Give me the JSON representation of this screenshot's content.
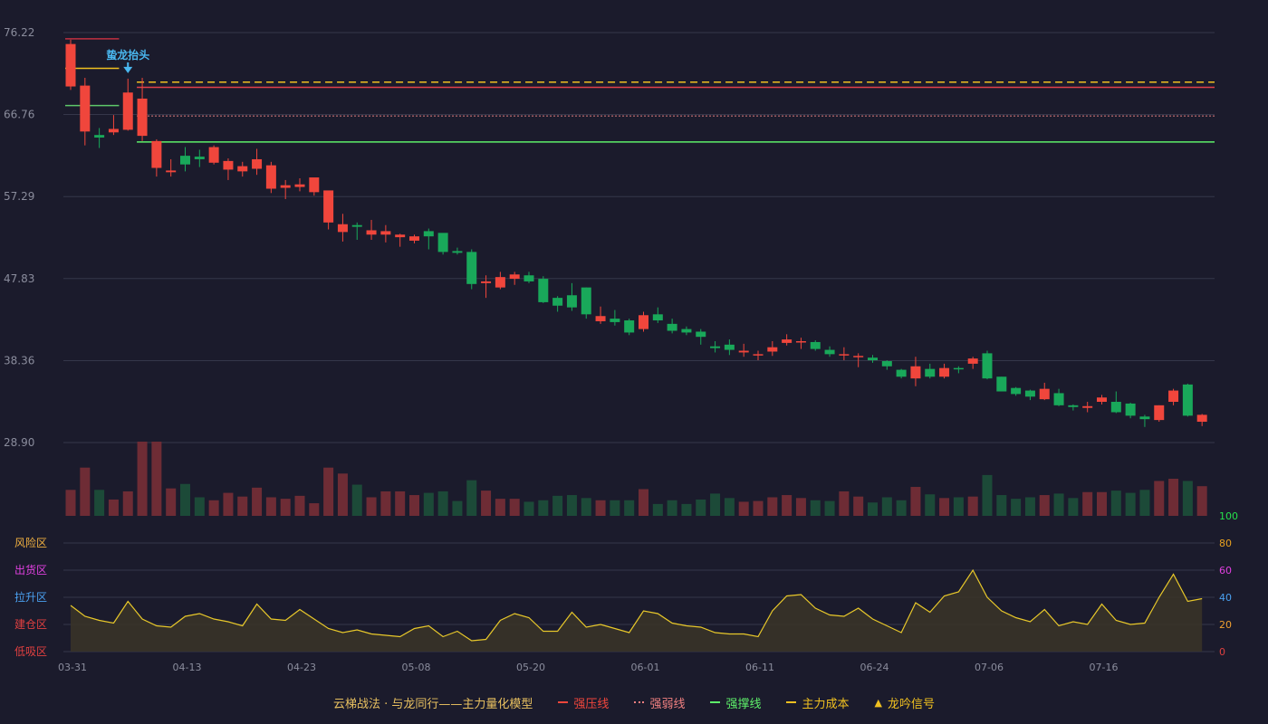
{
  "chart_data": {
    "type": "candlestick",
    "price_ticks": [
      "76.22",
      "66.76",
      "57.29",
      "47.83",
      "38.36",
      "28.90"
    ],
    "price_range": [
      28.9,
      76.22
    ],
    "date_ticks": [
      {
        "label": "03-31",
        "index": 0
      },
      {
        "label": "04-13",
        "index": 8
      },
      {
        "label": "04-23",
        "index": 16
      },
      {
        "label": "05-08",
        "index": 24
      },
      {
        "label": "05-20",
        "index": 32
      },
      {
        "label": "06-01",
        "index": 40
      },
      {
        "label": "06-11",
        "index": 48
      },
      {
        "label": "06-24",
        "index": 56
      },
      {
        "label": "07-06",
        "index": 64
      },
      {
        "label": "07-16",
        "index": 72
      }
    ],
    "candles": [
      [
        70.0,
        74.9,
        75.4,
        69.6
      ],
      [
        64.8,
        70.1,
        71.0,
        63.2
      ],
      [
        64.4,
        64.1,
        65.2,
        62.9
      ],
      [
        64.7,
        65.1,
        66.7,
        64.4
      ],
      [
        65.0,
        69.3,
        70.9,
        64.9
      ],
      [
        64.3,
        68.6,
        71.0,
        63.7
      ],
      [
        60.6,
        63.7,
        63.9,
        59.6
      ],
      [
        60.1,
        60.3,
        61.6,
        59.6
      ],
      [
        62.0,
        61.0,
        63.0,
        60.2
      ],
      [
        61.9,
        61.6,
        62.7,
        60.7
      ],
      [
        61.2,
        63.0,
        63.2,
        61.0
      ],
      [
        60.4,
        61.4,
        61.7,
        59.2
      ],
      [
        60.2,
        60.8,
        61.3,
        59.6
      ],
      [
        60.5,
        61.6,
        62.8,
        59.8
      ],
      [
        58.2,
        60.9,
        61.3,
        57.7
      ],
      [
        58.3,
        58.6,
        59.2,
        57.0
      ],
      [
        58.4,
        58.7,
        59.4,
        57.9
      ],
      [
        57.8,
        59.5,
        59.4,
        57.4
      ],
      [
        54.3,
        58.0,
        57.4,
        53.5
      ],
      [
        53.2,
        54.1,
        55.3,
        52.1
      ],
      [
        54.0,
        53.8,
        54.3,
        52.3
      ],
      [
        52.9,
        53.4,
        54.6,
        52.3
      ],
      [
        52.9,
        53.3,
        54.0,
        52.0
      ],
      [
        52.6,
        52.9,
        53.0,
        51.5
      ],
      [
        52.2,
        52.7,
        52.9,
        51.9
      ],
      [
        53.3,
        52.7,
        53.6,
        51.2
      ],
      [
        53.1,
        50.9,
        53.0,
        50.6
      ],
      [
        51.0,
        50.8,
        51.4,
        50.6
      ],
      [
        50.9,
        47.2,
        51.2,
        46.6
      ],
      [
        47.3,
        47.5,
        48.2,
        45.6
      ],
      [
        46.8,
        48.0,
        48.6,
        46.6
      ],
      [
        47.8,
        48.3,
        48.6,
        47.1
      ],
      [
        48.2,
        47.5,
        48.6,
        47.3
      ],
      [
        47.8,
        45.1,
        48.1,
        45.0
      ],
      [
        45.6,
        44.7,
        45.8,
        44.0
      ],
      [
        45.9,
        44.5,
        47.3,
        44.1
      ],
      [
        46.8,
        43.7,
        46.8,
        43.2
      ],
      [
        42.9,
        43.5,
        44.6,
        42.6
      ],
      [
        43.2,
        42.8,
        44.2,
        42.4
      ],
      [
        43.0,
        41.6,
        43.2,
        41.3
      ],
      [
        42.0,
        43.6,
        44.0,
        41.7
      ],
      [
        43.7,
        43.0,
        44.5,
        42.7
      ],
      [
        42.6,
        41.8,
        43.2,
        41.5
      ],
      [
        42.0,
        41.6,
        42.3,
        41.3
      ],
      [
        41.7,
        41.1,
        42.0,
        40.2
      ],
      [
        40.0,
        39.8,
        40.6,
        39.3
      ],
      [
        40.2,
        39.6,
        40.8,
        39.0
      ],
      [
        39.3,
        39.5,
        40.3,
        38.8
      ],
      [
        39.1,
        39.1,
        39.5,
        38.4
      ],
      [
        39.4,
        39.9,
        40.6,
        38.9
      ],
      [
        40.4,
        40.8,
        41.4,
        40.1
      ],
      [
        40.6,
        40.6,
        41.0,
        39.7
      ],
      [
        40.5,
        39.7,
        40.7,
        39.5
      ],
      [
        39.6,
        39.1,
        40.0,
        38.8
      ],
      [
        39.1,
        39.1,
        39.9,
        38.4
      ],
      [
        38.9,
        38.9,
        39.2,
        37.6
      ],
      [
        38.7,
        38.4,
        39.0,
        38.1
      ],
      [
        38.3,
        37.7,
        38.4,
        37.3
      ],
      [
        37.3,
        36.5,
        37.4,
        36.3
      ],
      [
        36.3,
        37.7,
        38.8,
        35.4
      ],
      [
        37.4,
        36.5,
        38.0,
        36.3
      ],
      [
        36.5,
        37.5,
        38.0,
        36.3
      ],
      [
        37.5,
        37.4,
        37.7,
        36.9
      ],
      [
        38.0,
        38.6,
        38.8,
        37.4
      ],
      [
        39.2,
        36.3,
        39.5,
        36.2
      ],
      [
        36.5,
        34.8,
        36.5,
        34.8
      ],
      [
        35.2,
        34.5,
        35.3,
        34.3
      ],
      [
        34.9,
        34.2,
        35.0,
        33.8
      ],
      [
        33.9,
        35.1,
        35.8,
        33.8
      ],
      [
        34.6,
        33.2,
        35.1,
        33.1
      ],
      [
        33.2,
        33.0,
        33.3,
        32.6
      ],
      [
        32.9,
        33.1,
        33.6,
        32.4
      ],
      [
        33.6,
        34.1,
        34.4,
        33.3
      ],
      [
        33.6,
        32.4,
        34.8,
        32.3
      ],
      [
        33.4,
        32.0,
        33.5,
        31.7
      ],
      [
        31.9,
        31.6,
        32.1,
        30.7
      ],
      [
        31.5,
        33.2,
        33.2,
        31.3
      ],
      [
        33.6,
        34.9,
        35.1,
        33.2
      ],
      [
        35.6,
        32.0,
        35.7,
        31.9
      ],
      [
        31.3,
        32.1,
        32.2,
        30.8
      ]
    ],
    "volume": [
      35,
      65,
      35,
      22,
      33,
      100,
      100,
      37,
      43,
      25,
      21,
      31,
      26,
      38,
      25,
      23,
      27,
      17,
      65,
      57,
      42,
      25,
      33,
      33,
      28,
      31,
      33,
      20,
      48,
      34,
      23,
      23,
      19,
      21,
      27,
      28,
      24,
      21,
      21,
      21,
      36,
      16,
      21,
      16,
      22,
      30,
      24,
      19,
      20,
      25,
      28,
      24,
      21,
      20,
      33,
      26,
      18,
      25,
      21,
      39,
      29,
      24,
      25,
      26,
      55,
      28,
      23,
      25,
      28,
      30,
      24,
      32,
      32,
      34,
      31,
      35,
      47,
      50,
      47,
      40
    ],
    "volume_max": 100,
    "indicator": [
      34,
      26,
      23,
      21,
      37,
      24,
      19,
      18,
      26,
      28,
      24,
      22,
      19,
      35,
      24,
      23,
      31,
      24,
      17,
      14,
      16,
      13,
      12,
      11,
      17,
      19,
      11,
      15,
      8,
      9,
      23,
      28,
      25,
      15,
      15,
      29,
      18,
      20,
      17,
      14,
      30,
      28,
      21,
      19,
      18,
      14,
      13,
      13,
      11,
      30,
      41,
      42,
      32,
      27,
      26,
      32,
      24,
      19,
      14,
      36,
      29,
      41,
      44,
      60,
      40,
      30,
      25,
      22,
      31,
      19,
      22,
      20,
      35,
      23,
      20,
      21,
      40,
      57,
      37,
      39
    ],
    "indicator_range": [
      0,
      100
    ],
    "indicator_ticks": [
      "100",
      "80",
      "60",
      "40",
      "20",
      "0"
    ],
    "indicator_tick_colors": [
      "#26e04b",
      "#e8a020",
      "#e040e0",
      "#4aa0f0",
      "#f0a030",
      "#e04040"
    ],
    "zones": [
      {
        "label": "风险区",
        "color": "#f0b040",
        "value": 80
      },
      {
        "label": "出货区",
        "color": "#e040e0",
        "value": 60
      },
      {
        "label": "拉升区",
        "color": "#4aa0f0",
        "value": 40
      },
      {
        "label": "建仓区",
        "color": "#e04040",
        "value": 20
      },
      {
        "label": "低吸区",
        "color": "#e04040",
        "value": 0
      }
    ],
    "levels": [
      {
        "name": "强压线",
        "value": 69.9,
        "start_index": 5,
        "color": "#e0404a",
        "style": "solid"
      },
      {
        "name": "强弱线",
        "value": 66.6,
        "start_index": 5,
        "color": "#e88080",
        "style": "dotted"
      },
      {
        "name": "强撑线",
        "value": 63.6,
        "start_index": 5,
        "color": "#5ef06a",
        "style": "solid"
      },
      {
        "name": "主力成本",
        "value": 70.5,
        "start_index": 5,
        "color": "#f0c020",
        "style": "dashed"
      }
    ],
    "stub_levels": [
      {
        "value": 75.5,
        "start_index": 0,
        "end_index": 3,
        "color": "#c03040"
      },
      {
        "value": 72.1,
        "start_index": 0,
        "end_index": 3,
        "color": "#f0c020"
      },
      {
        "value": 67.8,
        "start_index": 0,
        "end_index": 3,
        "color": "#5ec86a"
      }
    ],
    "signal": {
      "index": 4,
      "label": "蛰龙抬头",
      "color": "#4ab8f0"
    },
    "colors": {
      "up": "#f0463c",
      "down": "#19a85a",
      "vol_up": "#6e2c35",
      "vol_down": "#1c4a38",
      "grid": "#35374a",
      "axis_text": "#8a8c9c",
      "indicator": "#e8c82a",
      "indicator_fill": "#3a3428"
    }
  },
  "legend": {
    "title": "云梯战法 · 与龙同行——主力量化模型",
    "title_color": "#e8c060",
    "items": [
      {
        "label": "强压线",
        "color": "#f0463c",
        "style": "solid"
      },
      {
        "label": "强弱线",
        "color": "#f08080",
        "style": "dotted"
      },
      {
        "label": "强撑线",
        "color": "#5ef06a",
        "style": "solid"
      },
      {
        "label": "主力成本",
        "color": "#f0c020",
        "style": "dashed"
      },
      {
        "label": "龙吟信号",
        "color": "#f0c020",
        "style": "triangle"
      }
    ]
  }
}
